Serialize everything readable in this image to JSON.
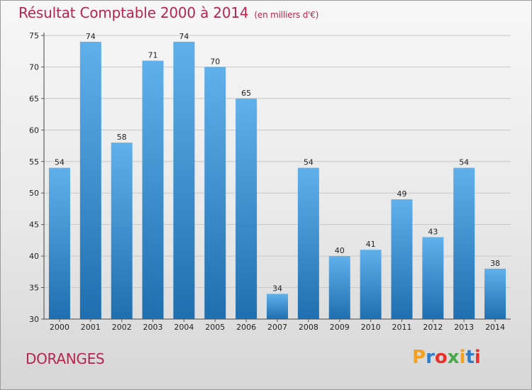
{
  "header": {
    "title": "Résultat Comptable 2000 à 2014",
    "subtitle": "(en milliers d'€)"
  },
  "footer": {
    "commune": "DORANGES",
    "logo": [
      "P",
      "r",
      "o",
      "x",
      "i",
      "t",
      "i"
    ],
    "logo_colors": [
      "#f4a11d",
      "#2c7fc8",
      "#e8312a",
      "#4aa84a",
      "#f4a11d",
      "#2c7fc8",
      "#e8312a"
    ]
  },
  "colors": {
    "bar_top": "#60b0ec",
    "bar_bottom": "#1f6fb0",
    "title": "#b4264e"
  },
  "chart_data": {
    "type": "bar",
    "title": "Résultat Comptable 2000 à 2014",
    "subtitle": "(en milliers d'€)",
    "categories": [
      "2000",
      "2001",
      "2002",
      "2003",
      "2004",
      "2005",
      "2006",
      "2007",
      "2008",
      "2009",
      "2010",
      "2011",
      "2012",
      "2013",
      "2014"
    ],
    "values": [
      54,
      74,
      58,
      71,
      74,
      70,
      65,
      34,
      54,
      40,
      41,
      49,
      43,
      54,
      38
    ],
    "ylim": [
      30,
      75
    ],
    "yticks": [
      30,
      35,
      40,
      45,
      50,
      55,
      60,
      65,
      70,
      75
    ],
    "grid": true
  }
}
